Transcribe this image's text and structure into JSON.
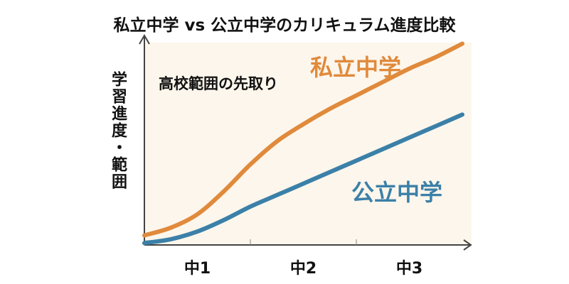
{
  "chart_data": {
    "type": "line",
    "title": "私立中学 vs 公立中学のカリキュラム進度比較",
    "xlabel": "",
    "ylabel": "学習進度・範囲",
    "categories": [
      "中1",
      "中2",
      "中3"
    ],
    "xlim": [
      0,
      3
    ],
    "ylim": [
      0,
      10
    ],
    "grid": false,
    "annotations": [
      {
        "text": "高校範囲の先取り",
        "x": 0.3,
        "y": 8.2
      }
    ],
    "series": [
      {
        "name": "私立中学",
        "color": "#e08a3c",
        "x": [
          0,
          0.25,
          0.5,
          0.75,
          1.0,
          1.25,
          1.5,
          1.75,
          2.0,
          2.25,
          2.5,
          2.75,
          3.0
        ],
        "y": [
          0.5,
          0.9,
          1.6,
          2.8,
          4.2,
          5.4,
          6.3,
          7.1,
          7.8,
          8.5,
          9.2,
          9.8,
          10.5
        ]
      },
      {
        "name": "公立中学",
        "color": "#3b80a8",
        "x": [
          0,
          0.25,
          0.5,
          0.75,
          1.0,
          1.25,
          1.5,
          1.75,
          2.0,
          2.25,
          2.5,
          2.75,
          3.0
        ],
        "y": [
          0.1,
          0.3,
          0.7,
          1.3,
          2.0,
          2.6,
          3.2,
          3.8,
          4.4,
          5.0,
          5.6,
          6.2,
          6.8
        ]
      }
    ]
  },
  "colors": {
    "plot_background": "#fdf6ec",
    "axis": "#444444"
  }
}
